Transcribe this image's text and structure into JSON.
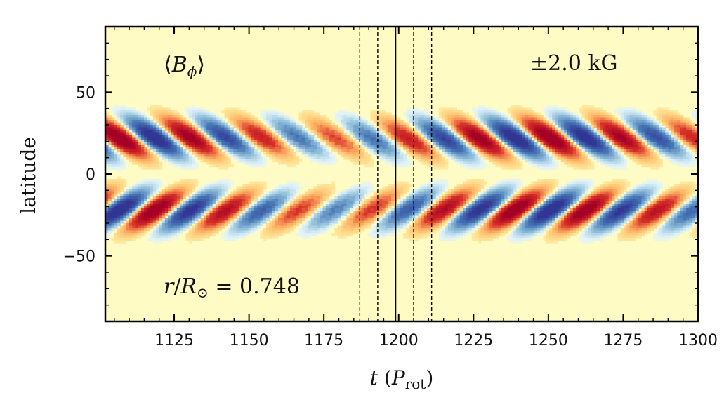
{
  "chart_data": {
    "type": "heatmap",
    "title": "",
    "xlabel_italic": "t",
    "xlabel_open": "(",
    "xlabel_p": "P",
    "xlabel_sub": "rot",
    "xlabel_close": ")",
    "ylabel": "latitude",
    "xlim": [
      1102,
      1300
    ],
    "ylim": [
      -90,
      90
    ],
    "x_ticks": [
      1125,
      1150,
      1175,
      1200,
      1225,
      1250,
      1275,
      1300
    ],
    "x_tick_labels": [
      "1125",
      "1150",
      "1175",
      "1200",
      "1225",
      "1250",
      "1275",
      "1300"
    ],
    "y_ticks": [
      50,
      0,
      -50
    ],
    "y_tick_labels": [
      "50",
      "0",
      "−50"
    ],
    "field_label_open": "⟨",
    "field_label_b": "B",
    "field_label_sub": "ϕ",
    "field_label_close": "⟩",
    "color_range_label": "±2.0 kG",
    "radius_r": "r",
    "radius_slash": "/",
    "radius_R": "R",
    "radius_sun": "⊙",
    "radius_value": " = 0.748",
    "vertical_lines_dashed": [
      1187,
      1193,
      1205,
      1211
    ],
    "vertical_lines_solid": [
      1199
    ],
    "colormap": "RdBu_r",
    "cycle_period": 24,
    "color_range_kG": [
      -2.0,
      2.0
    ],
    "colors": {
      "strong_positive": "#a50026",
      "positive": "#f46d43",
      "neutral": "#fefbc4",
      "negative": "#74add1",
      "strong_negative": "#313695",
      "axis": "#000000"
    }
  }
}
